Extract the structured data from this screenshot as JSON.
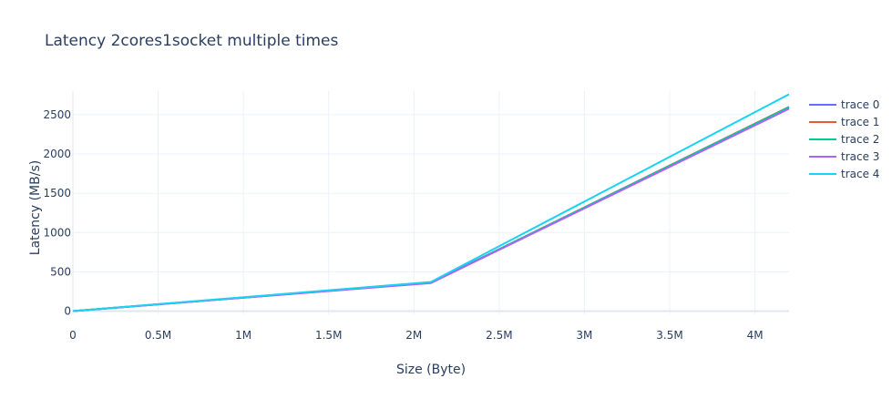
{
  "chart_data": {
    "type": "line",
    "title": "Latency 2cores1socket multiple times",
    "xlabel": "Size (Byte)",
    "ylabel": "Latency (MB/s)",
    "xlim": [
      0,
      4200000
    ],
    "ylim": [
      -40,
      2800
    ],
    "x_ticks": [
      {
        "value": 0,
        "label": "0"
      },
      {
        "value": 500000,
        "label": "0.5M"
      },
      {
        "value": 1000000,
        "label": "1M"
      },
      {
        "value": 1500000,
        "label": "1.5M"
      },
      {
        "value": 2000000,
        "label": "2M"
      },
      {
        "value": 2500000,
        "label": "2.5M"
      },
      {
        "value": 3000000,
        "label": "3M"
      },
      {
        "value": 3500000,
        "label": "3.5M"
      },
      {
        "value": 4000000,
        "label": "4M"
      }
    ],
    "y_ticks": [
      {
        "value": 0,
        "label": "0"
      },
      {
        "value": 500,
        "label": "500"
      },
      {
        "value": 1000,
        "label": "1000"
      },
      {
        "value": 1500,
        "label": "1500"
      },
      {
        "value": 2000,
        "label": "2000"
      },
      {
        "value": 2500,
        "label": "2500"
      }
    ],
    "grid": true,
    "legend_position": "right",
    "series": [
      {
        "name": "trace 0",
        "color": "#636efa",
        "x": [
          0,
          2100000,
          4200000
        ],
        "y": [
          0,
          362,
          2590
        ]
      },
      {
        "name": "trace 1",
        "color": "#ef553b",
        "x": [
          0,
          2100000,
          4200000
        ],
        "y": [
          0,
          362,
          2600
        ]
      },
      {
        "name": "trace 2",
        "color": "#00cc96",
        "x": [
          0,
          2100000,
          4200000
        ],
        "y": [
          0,
          362,
          2595
        ]
      },
      {
        "name": "trace 3",
        "color": "#ab63fa",
        "x": [
          0,
          2100000,
          4200000
        ],
        "y": [
          0,
          358,
          2575
        ]
      },
      {
        "name": "trace 4",
        "color": "#19d3f3",
        "x": [
          0,
          2100000,
          4200000
        ],
        "y": [
          0,
          372,
          2760
        ]
      }
    ]
  }
}
